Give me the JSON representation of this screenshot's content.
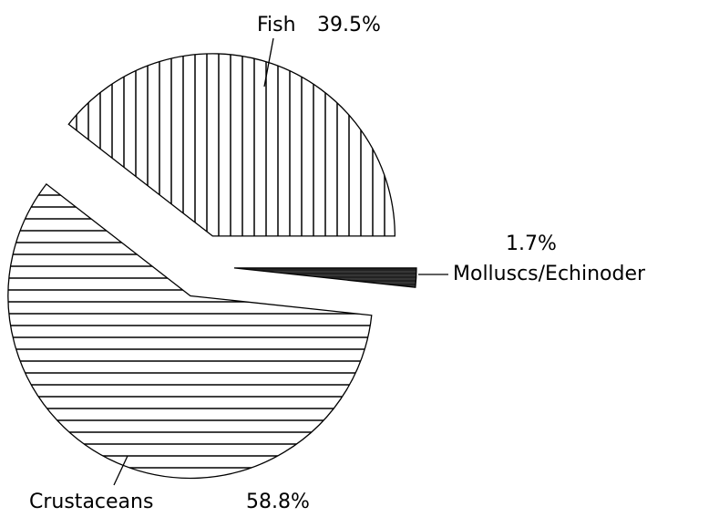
{
  "chart_data": {
    "type": "pie",
    "categories": [
      "Fish",
      "Molluscs/Echinoder",
      "Crustaceans"
    ],
    "values": [
      39.5,
      1.7,
      58.8
    ],
    "value_labels": [
      "39.5%",
      "1.7%",
      "58.8%"
    ],
    "patterns": [
      "vertical",
      "solid",
      "horizontal"
    ],
    "color": "#000000"
  }
}
